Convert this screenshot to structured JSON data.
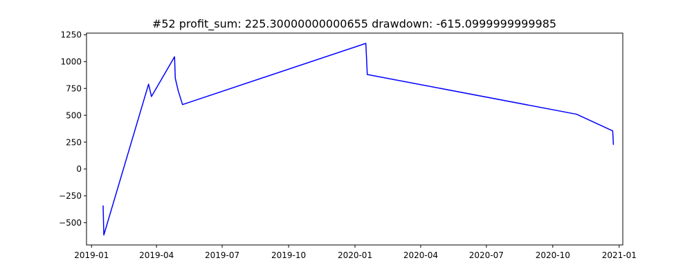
{
  "chart_data": {
    "type": "line",
    "title": "#52   profit_sum: 225.30000000000655 drawdown: -615.0999999999985",
    "xlabel": "",
    "ylabel": "",
    "xlim": [
      "2018-12-25",
      "2021-01-06"
    ],
    "ylim": [
      -707.5,
      1265.5
    ],
    "grid": false,
    "x_tick_labels": [
      "2019-01",
      "2019-04",
      "2019-07",
      "2019-10",
      "2020-01",
      "2020-04",
      "2020-07",
      "2020-10",
      "2021-01"
    ],
    "x_tick_dates": [
      "2019-01-01",
      "2019-04-01",
      "2019-07-01",
      "2019-10-01",
      "2020-01-01",
      "2020-04-01",
      "2020-07-01",
      "2020-10-01",
      "2021-01-01"
    ],
    "y_ticks": [
      -500,
      -250,
      0,
      250,
      500,
      750,
      1000,
      1250
    ],
    "y_tick_labels": [
      "−500",
      "−250",
      "0",
      "250",
      "500",
      "750",
      "1000",
      "1250"
    ],
    "series": [
      {
        "color": "#0000ff",
        "x": [
          "2019-01-17",
          "2019-01-18",
          "2019-03-21",
          "2019-03-25",
          "2019-04-26",
          "2019-04-27",
          "2019-05-01",
          "2019-05-07",
          "2020-01-16",
          "2020-01-18",
          "2020-11-03",
          "2020-12-23",
          "2020-12-24"
        ],
        "values": [
          -340,
          -615.1,
          790,
          675,
          1045,
          845,
          730,
          600,
          1170,
          880,
          510,
          355,
          225.3
        ]
      }
    ]
  }
}
